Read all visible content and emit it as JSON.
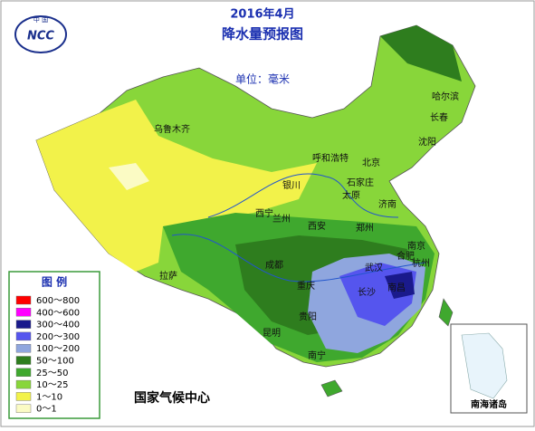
{
  "logo": {
    "top": "中 国",
    "name": "NCC"
  },
  "header": {
    "year_month": "2016年4月",
    "title": "降水量预报图",
    "unit": "单位：毫米"
  },
  "legend": {
    "title": "图 例",
    "entries": [
      {
        "label": "600～800",
        "color": "#ff0000"
      },
      {
        "label": "400～600",
        "color": "#ff00ff"
      },
      {
        "label": "300～400",
        "color": "#1a1a8c"
      },
      {
        "label": "200～300",
        "color": "#5555ee"
      },
      {
        "label": "100～200",
        "color": "#8fa6de"
      },
      {
        "label": "50～100",
        "color": "#2e7d1e"
      },
      {
        "label": "25～50",
        "color": "#3fa82e"
      },
      {
        "label": "10～25",
        "color": "#88d63a"
      },
      {
        "label": "1～10",
        "color": "#f2f24a"
      },
      {
        "label": "0～1",
        "color": "#fbfbc4"
      }
    ]
  },
  "cities": [
    "乌鲁木齐",
    "哈尔滨",
    "长春",
    "沈阳",
    "呼和浩特",
    "北京",
    "石家庄",
    "太原",
    "银川",
    "西宁",
    "兰州",
    "济南",
    "郑州",
    "西安",
    "南京",
    "合肥",
    "杭州",
    "武汉",
    "成都",
    "重庆",
    "长沙",
    "南昌",
    "贵阳",
    "昆明",
    "南宁",
    "拉萨"
  ],
  "footer": {
    "agency": "国家气候中心",
    "inset": "南海诸岛"
  }
}
